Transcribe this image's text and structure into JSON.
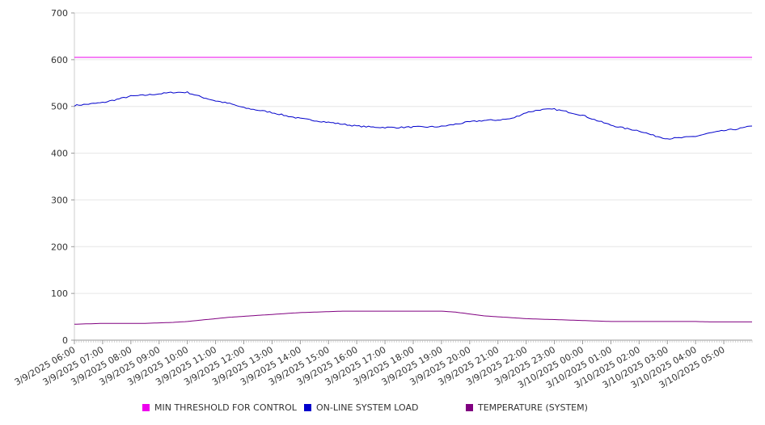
{
  "chart_data": {
    "type": "line",
    "title": "",
    "xlabel": "",
    "ylabel": "",
    "ylim": [
      0,
      700
    ],
    "yticks": [
      0,
      100,
      200,
      300,
      400,
      500,
      600,
      700
    ],
    "grid": true,
    "legend_position": "bottom",
    "x_tick_labels": [
      "3/9/2025 06:00",
      "3/9/2025 07:00",
      "3/9/2025 08:00",
      "3/9/2025 09:00",
      "3/9/2025 10:00",
      "3/9/2025 11:00",
      "3/9/2025 12:00",
      "3/9/2025 13:00",
      "3/9/2025 14:00",
      "3/9/2025 15:00",
      "3/9/2025 16:00",
      "3/9/2025 17:00",
      "3/9/2025 18:00",
      "3/9/2025 19:00",
      "3/9/2025 20:00",
      "3/9/2025 21:00",
      "3/9/2025 22:00",
      "3/9/2025 23:00",
      "3/10/2025 00:00",
      "3/10/2025 01:00",
      "3/10/2025 02:00",
      "3/10/2025 03:00",
      "3/10/2025 04:00",
      "3/10/2025 05:00"
    ],
    "x_hours": [
      0,
      0.5,
      1,
      1.5,
      2,
      2.5,
      3,
      3.5,
      4,
      4.5,
      5,
      5.5,
      6,
      6.5,
      7,
      7.5,
      8,
      8.5,
      9,
      9.5,
      10,
      10.5,
      11,
      11.5,
      12,
      12.5,
      13,
      13.5,
      14,
      14.5,
      15,
      15.5,
      16,
      16.5,
      17,
      17.5,
      18,
      18.5,
      19,
      19.5,
      20,
      20.5,
      21,
      21.5,
      22,
      22.5,
      23,
      23.5,
      24
    ],
    "series": [
      {
        "name": "MIN THRESHOLD FOR CONTROL",
        "color": "#ee00ee",
        "values": [
          605,
          605,
          605,
          605,
          605,
          605,
          605,
          605,
          605,
          605,
          605,
          605,
          605,
          605,
          605,
          605,
          605,
          605,
          605,
          605,
          605,
          605,
          605,
          605,
          605,
          605,
          605,
          605,
          605,
          605,
          605,
          605,
          605,
          605,
          605,
          605,
          605,
          605,
          605,
          605,
          605,
          605,
          605,
          605,
          605,
          605,
          605,
          605,
          605
        ]
      },
      {
        "name": "ON-LINE SYSTEM LOAD",
        "color": "#0000cc",
        "values": [
          502,
          505,
          508,
          515,
          522,
          524,
          527,
          530,
          530,
          520,
          512,
          506,
          497,
          492,
          487,
          480,
          474,
          470,
          466,
          462,
          458,
          456,
          455,
          455,
          456,
          456,
          457,
          462,
          467,
          470,
          471,
          474,
          487,
          493,
          494,
          488,
          481,
          470,
          460,
          453,
          448,
          438,
          431,
          433,
          436,
          443,
          448,
          452,
          458
        ]
      },
      {
        "name": "TEMPERATURE (SYSTEM)",
        "color": "#800080",
        "values": [
          34,
          35,
          36,
          36,
          36,
          36,
          37,
          38,
          40,
          43,
          46,
          49,
          51,
          53,
          55,
          57,
          59,
          60,
          61,
          62,
          62,
          62,
          62,
          62,
          62,
          62,
          62,
          60,
          56,
          52,
          50,
          48,
          46,
          45,
          44,
          43,
          42,
          41,
          40,
          40,
          40,
          40,
          40,
          40,
          40,
          39,
          39,
          39,
          39
        ]
      }
    ]
  }
}
